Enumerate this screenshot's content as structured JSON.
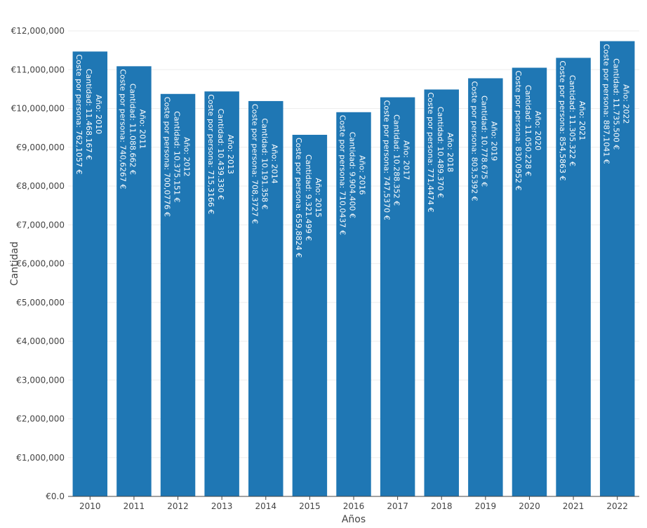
{
  "chart_data": {
    "type": "bar",
    "title": "",
    "xlabel": "Años",
    "ylabel": "Cantidad",
    "ylim": [
      0,
      12000000
    ],
    "grid": true,
    "bar_color": "#1f77b4",
    "grid_color": "#eeeeee",
    "text_color": "#444444",
    "label_color": "#ffffff",
    "y_ticks": [
      {
        "value": 0,
        "label": "€0.0"
      },
      {
        "value": 1000000,
        "label": "€1,000,000"
      },
      {
        "value": 2000000,
        "label": "€2,000,000"
      },
      {
        "value": 3000000,
        "label": "€3,000,000"
      },
      {
        "value": 4000000,
        "label": "€4,000,000"
      },
      {
        "value": 5000000,
        "label": "€5,000,000"
      },
      {
        "value": 6000000,
        "label": "€6,000,000"
      },
      {
        "value": 7000000,
        "label": "€7,000,000"
      },
      {
        "value": 8000000,
        "label": "€8,000,000"
      },
      {
        "value": 9000000,
        "label": "€9,000,000"
      },
      {
        "value": 10000000,
        "label": "€10,000,000"
      },
      {
        "value": 11000000,
        "label": "€11,000,000"
      },
      {
        "value": 12000000,
        "label": "€12,000,000"
      }
    ],
    "categories": [
      "2010",
      "2011",
      "2012",
      "2013",
      "2014",
      "2015",
      "2016",
      "2017",
      "2018",
      "2019",
      "2020",
      "2021",
      "2022"
    ],
    "values": [
      11468167,
      11088662,
      10375151,
      10439330,
      10191358,
      9321499,
      9904400,
      10288352,
      10489370,
      10778675,
      11050228,
      11305322,
      11735500
    ],
    "bar_labels": [
      [
        "Año:  2010",
        "Cantidad:  11.468.167 €",
        "Coste por persona:  762,1057 €"
      ],
      [
        "Año:  2011",
        "Cantidad:  11.088.662 €",
        "Coste por persona:  740,6267 €"
      ],
      [
        "Año:  2012",
        "Cantidad:  10.375.151 €",
        "Coste por persona:  700,0776 €"
      ],
      [
        "Año:  2013",
        "Cantidad:  10.439.330 €",
        "Coste por persona:  715,3166 €"
      ],
      [
        "Año:  2014",
        "Cantidad:  10.191.358 €",
        "Coste por persona:  708,3727 €"
      ],
      [
        "Año:  2015",
        "Cantidad:  9.321.499 €",
        "Coste por persona:  659,8824 €"
      ],
      [
        "Año:  2016",
        "Cantidad:  9.904.400 €",
        "Coste por persona:  710,0437 €"
      ],
      [
        "Año:  2017",
        "Cantidad:  10.288.352 €",
        "Coste por persona:  747,5370 €"
      ],
      [
        "Año:  2018",
        "Cantidad:  10.489.370 €",
        "Coste por persona:  771,4474 €"
      ],
      [
        "Año:  2019",
        "Cantidad:  10.778.675 €",
        "Coste por persona:  803,5392 €"
      ],
      [
        "Año:  2020",
        "Cantidad:  11.050.228 €",
        "Coste por persona:  830,0952 €"
      ],
      [
        "Año:  2021",
        "Cantidad:  11.305.322 €",
        "Coste por persona:  854,5863 €"
      ],
      [
        "Año:  2022",
        "Cantidad:  11.735.500 €",
        "Coste por persona:  887,1041 €"
      ]
    ]
  }
}
